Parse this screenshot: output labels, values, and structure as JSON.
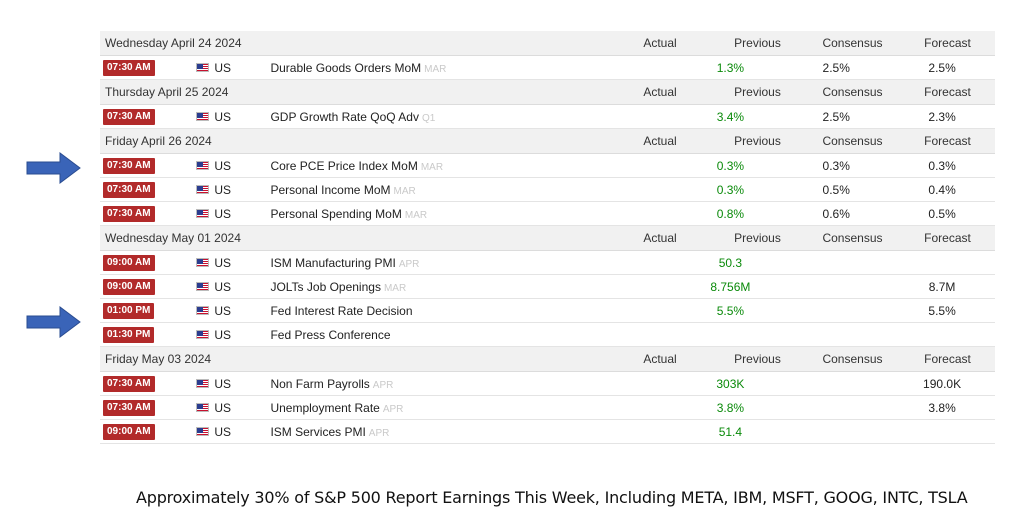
{
  "columns": {
    "actual": "Actual",
    "previous": "Previous",
    "consensus": "Consensus",
    "forecast": "Forecast"
  },
  "days": [
    {
      "date": "Wednesday April 24 2024",
      "events": [
        {
          "time": "07:30 AM",
          "country": "US",
          "name": "Durable Goods Orders MoM",
          "ref": "MAR",
          "actual": "",
          "previous": "1.3%",
          "consensus": "2.5%",
          "forecast": "2.5%"
        }
      ]
    },
    {
      "date": "Thursday April 25 2024",
      "events": [
        {
          "time": "07:30 AM",
          "country": "US",
          "name": "GDP Growth Rate QoQ Adv",
          "ref": "Q1",
          "actual": "",
          "previous": "3.4%",
          "consensus": "2.5%",
          "forecast": "2.3%"
        }
      ]
    },
    {
      "date": "Friday April 26 2024",
      "events": [
        {
          "time": "07:30 AM",
          "country": "US",
          "name": "Core PCE Price Index MoM",
          "ref": "MAR",
          "actual": "",
          "previous": "0.3%",
          "consensus": "0.3%",
          "forecast": "0.3%"
        },
        {
          "time": "07:30 AM",
          "country": "US",
          "name": "Personal Income MoM",
          "ref": "MAR",
          "actual": "",
          "previous": "0.3%",
          "consensus": "0.5%",
          "forecast": "0.4%"
        },
        {
          "time": "07:30 AM",
          "country": "US",
          "name": "Personal Spending MoM",
          "ref": "MAR",
          "actual": "",
          "previous": "0.8%",
          "consensus": "0.6%",
          "forecast": "0.5%"
        }
      ]
    },
    {
      "date": "Wednesday May 01 2024",
      "events": [
        {
          "time": "09:00 AM",
          "country": "US",
          "name": "ISM Manufacturing PMI",
          "ref": "APR",
          "actual": "",
          "previous": "50.3",
          "consensus": "",
          "forecast": ""
        },
        {
          "time": "09:00 AM",
          "country": "US",
          "name": "JOLTs Job Openings",
          "ref": "MAR",
          "actual": "",
          "previous": "8.756M",
          "consensus": "",
          "forecast": "8.7M"
        },
        {
          "time": "01:00 PM",
          "country": "US",
          "name": "Fed Interest Rate Decision",
          "ref": "",
          "actual": "",
          "previous": "5.5%",
          "consensus": "",
          "forecast": "5.5%"
        },
        {
          "time": "01:30 PM",
          "country": "US",
          "name": "Fed Press Conference",
          "ref": "",
          "actual": "",
          "previous": "",
          "consensus": "",
          "forecast": ""
        }
      ]
    },
    {
      "date": "Friday May 03 2024",
      "events": [
        {
          "time": "07:30 AM",
          "country": "US",
          "name": "Non Farm Payrolls",
          "ref": "APR",
          "actual": "",
          "previous": "303K",
          "consensus": "",
          "forecast": "190.0K"
        },
        {
          "time": "07:30 AM",
          "country": "US",
          "name": "Unemployment Rate",
          "ref": "APR",
          "actual": "",
          "previous": "3.8%",
          "consensus": "",
          "forecast": "3.8%"
        },
        {
          "time": "09:00 AM",
          "country": "US",
          "name": "ISM Services PMI",
          "ref": "APR",
          "actual": "",
          "previous": "51.4",
          "consensus": "",
          "forecast": ""
        }
      ]
    }
  ],
  "caption": "Approximately 30% of S&P 500 Report Earnings This Week, Including META, IBM, MSFT, GOOG, INTC, TSLA",
  "colors": {
    "time_badge": "#b22a2a",
    "previous_value": "#0a8a0a",
    "arrow": "#3a64b8"
  }
}
